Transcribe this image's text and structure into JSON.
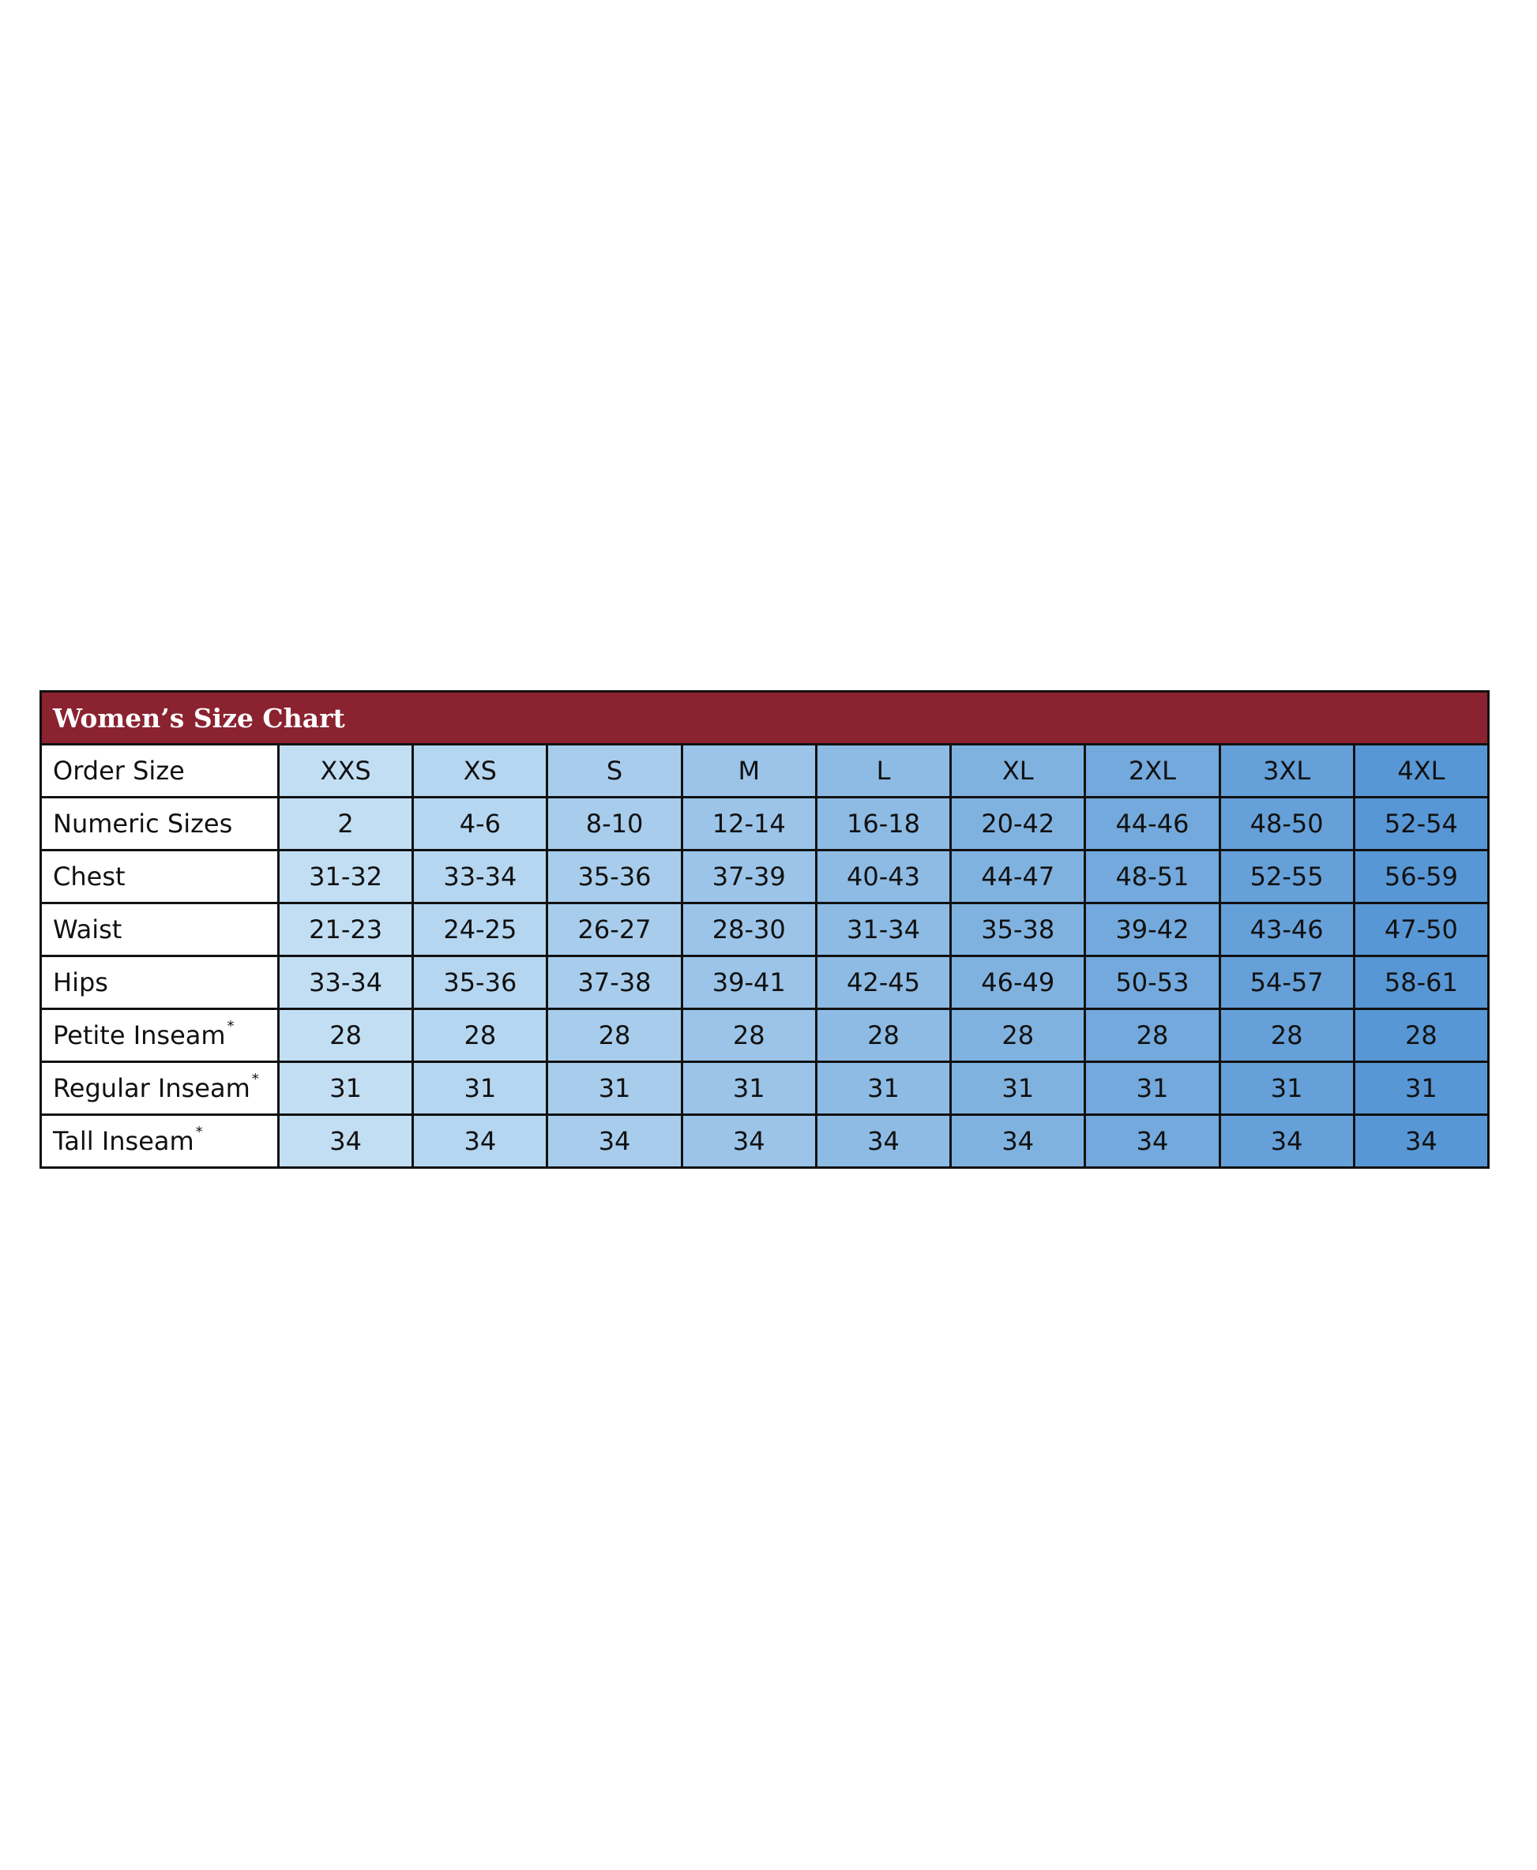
{
  "header": {
    "title": "Women’s Size Chart"
  },
  "table": {
    "corner": "Order Size",
    "columns": [
      "XXS",
      "XS",
      "S",
      "M",
      "L",
      "XL",
      "2XL",
      "3XL",
      "4XL"
    ],
    "colors": [
      "#c2def3",
      "#b5d6f0",
      "#a8cdec",
      "#9bc4e8",
      "#8dbbe4",
      "#80b2e0",
      "#73a9dc",
      "#65a0d9",
      "#5897d5"
    ],
    "title_color": "#8a2230",
    "rows": [
      {
        "label": "Numeric Sizes",
        "cells": [
          "2",
          "4-6",
          "8-10",
          "12-14",
          "16-18",
          "20-42",
          "44-46",
          "48-50",
          "52-54"
        ]
      },
      {
        "label": "Chest",
        "cells": [
          "31-32",
          "33-34",
          "35-36",
          "37-39",
          "40-43",
          "44-47",
          "48-51",
          "52-55",
          "56-59"
        ]
      },
      {
        "label": "Waist",
        "cells": [
          "21-23",
          "24-25",
          "26-27",
          "28-30",
          "31-34",
          "35-38",
          "39-42",
          "43-46",
          "47-50"
        ]
      },
      {
        "label": "Hips",
        "cells": [
          "33-34",
          "35-36",
          "37-38",
          "39-41",
          "42-45",
          "46-49",
          "50-53",
          "54-57",
          "58-61"
        ]
      },
      {
        "label": "Petite Inseam",
        "footnote": "*",
        "cells": [
          "28",
          "28",
          "28",
          "28",
          "28",
          "28",
          "28",
          "28",
          "28"
        ]
      },
      {
        "label": "Regular Inseam",
        "footnote": "*",
        "cells": [
          "31",
          "31",
          "31",
          "31",
          "31",
          "31",
          "31",
          "31",
          "31"
        ]
      },
      {
        "label": "Tall Inseam",
        "footnote": "*",
        "cells": [
          "34",
          "34",
          "34",
          "34",
          "34",
          "34",
          "34",
          "34",
          "34"
        ]
      }
    ]
  }
}
